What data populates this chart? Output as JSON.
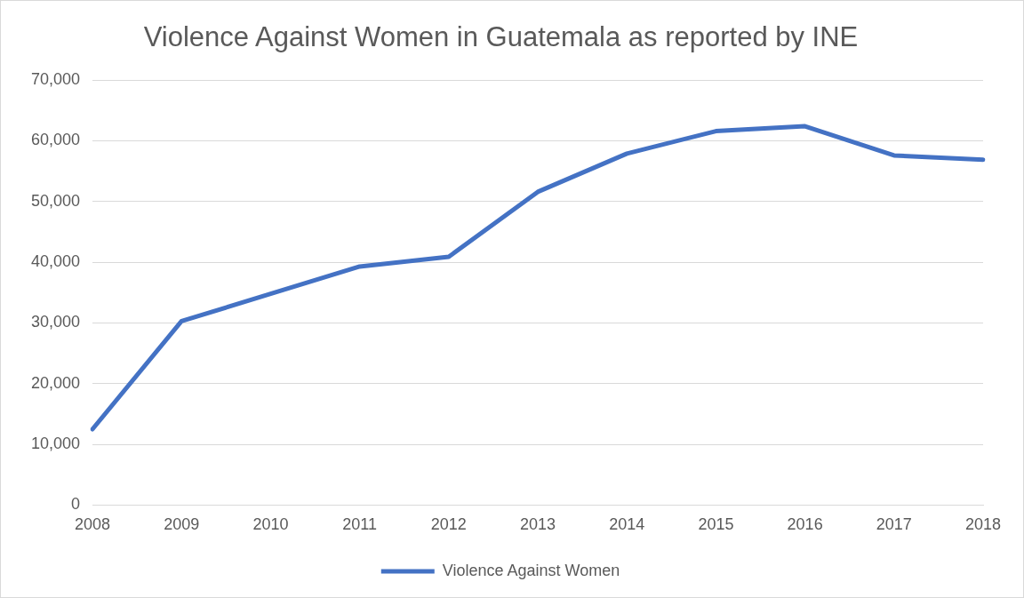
{
  "chart_data": {
    "type": "line",
    "title": "Violence Against Women in Guatemala as reported by INE",
    "categories": [
      "2008",
      "2009",
      "2010",
      "2011",
      "2012",
      "2013",
      "2014",
      "2015",
      "2016",
      "2017",
      "2018"
    ],
    "series": [
      {
        "name": "Violence Against Women",
        "color": "#4472c4",
        "values": [
          12500,
          30300,
          34800,
          39300,
          40900,
          51600,
          57900,
          61600,
          62400,
          57600,
          56900
        ]
      }
    ],
    "ylim": [
      0,
      70000
    ],
    "yticks": [
      {
        "value": 0,
        "label": "0"
      },
      {
        "value": 10000,
        "label": "10,000"
      },
      {
        "value": 20000,
        "label": "20,000"
      },
      {
        "value": 30000,
        "label": "30,000"
      },
      {
        "value": 40000,
        "label": "40,000"
      },
      {
        "value": 50000,
        "label": "50,000"
      },
      {
        "value": 60000,
        "label": "60,000"
      },
      {
        "value": 70000,
        "label": "70,000"
      }
    ],
    "grid": "y",
    "legend": "bottom",
    "marker": "none",
    "line_style": "solid"
  }
}
